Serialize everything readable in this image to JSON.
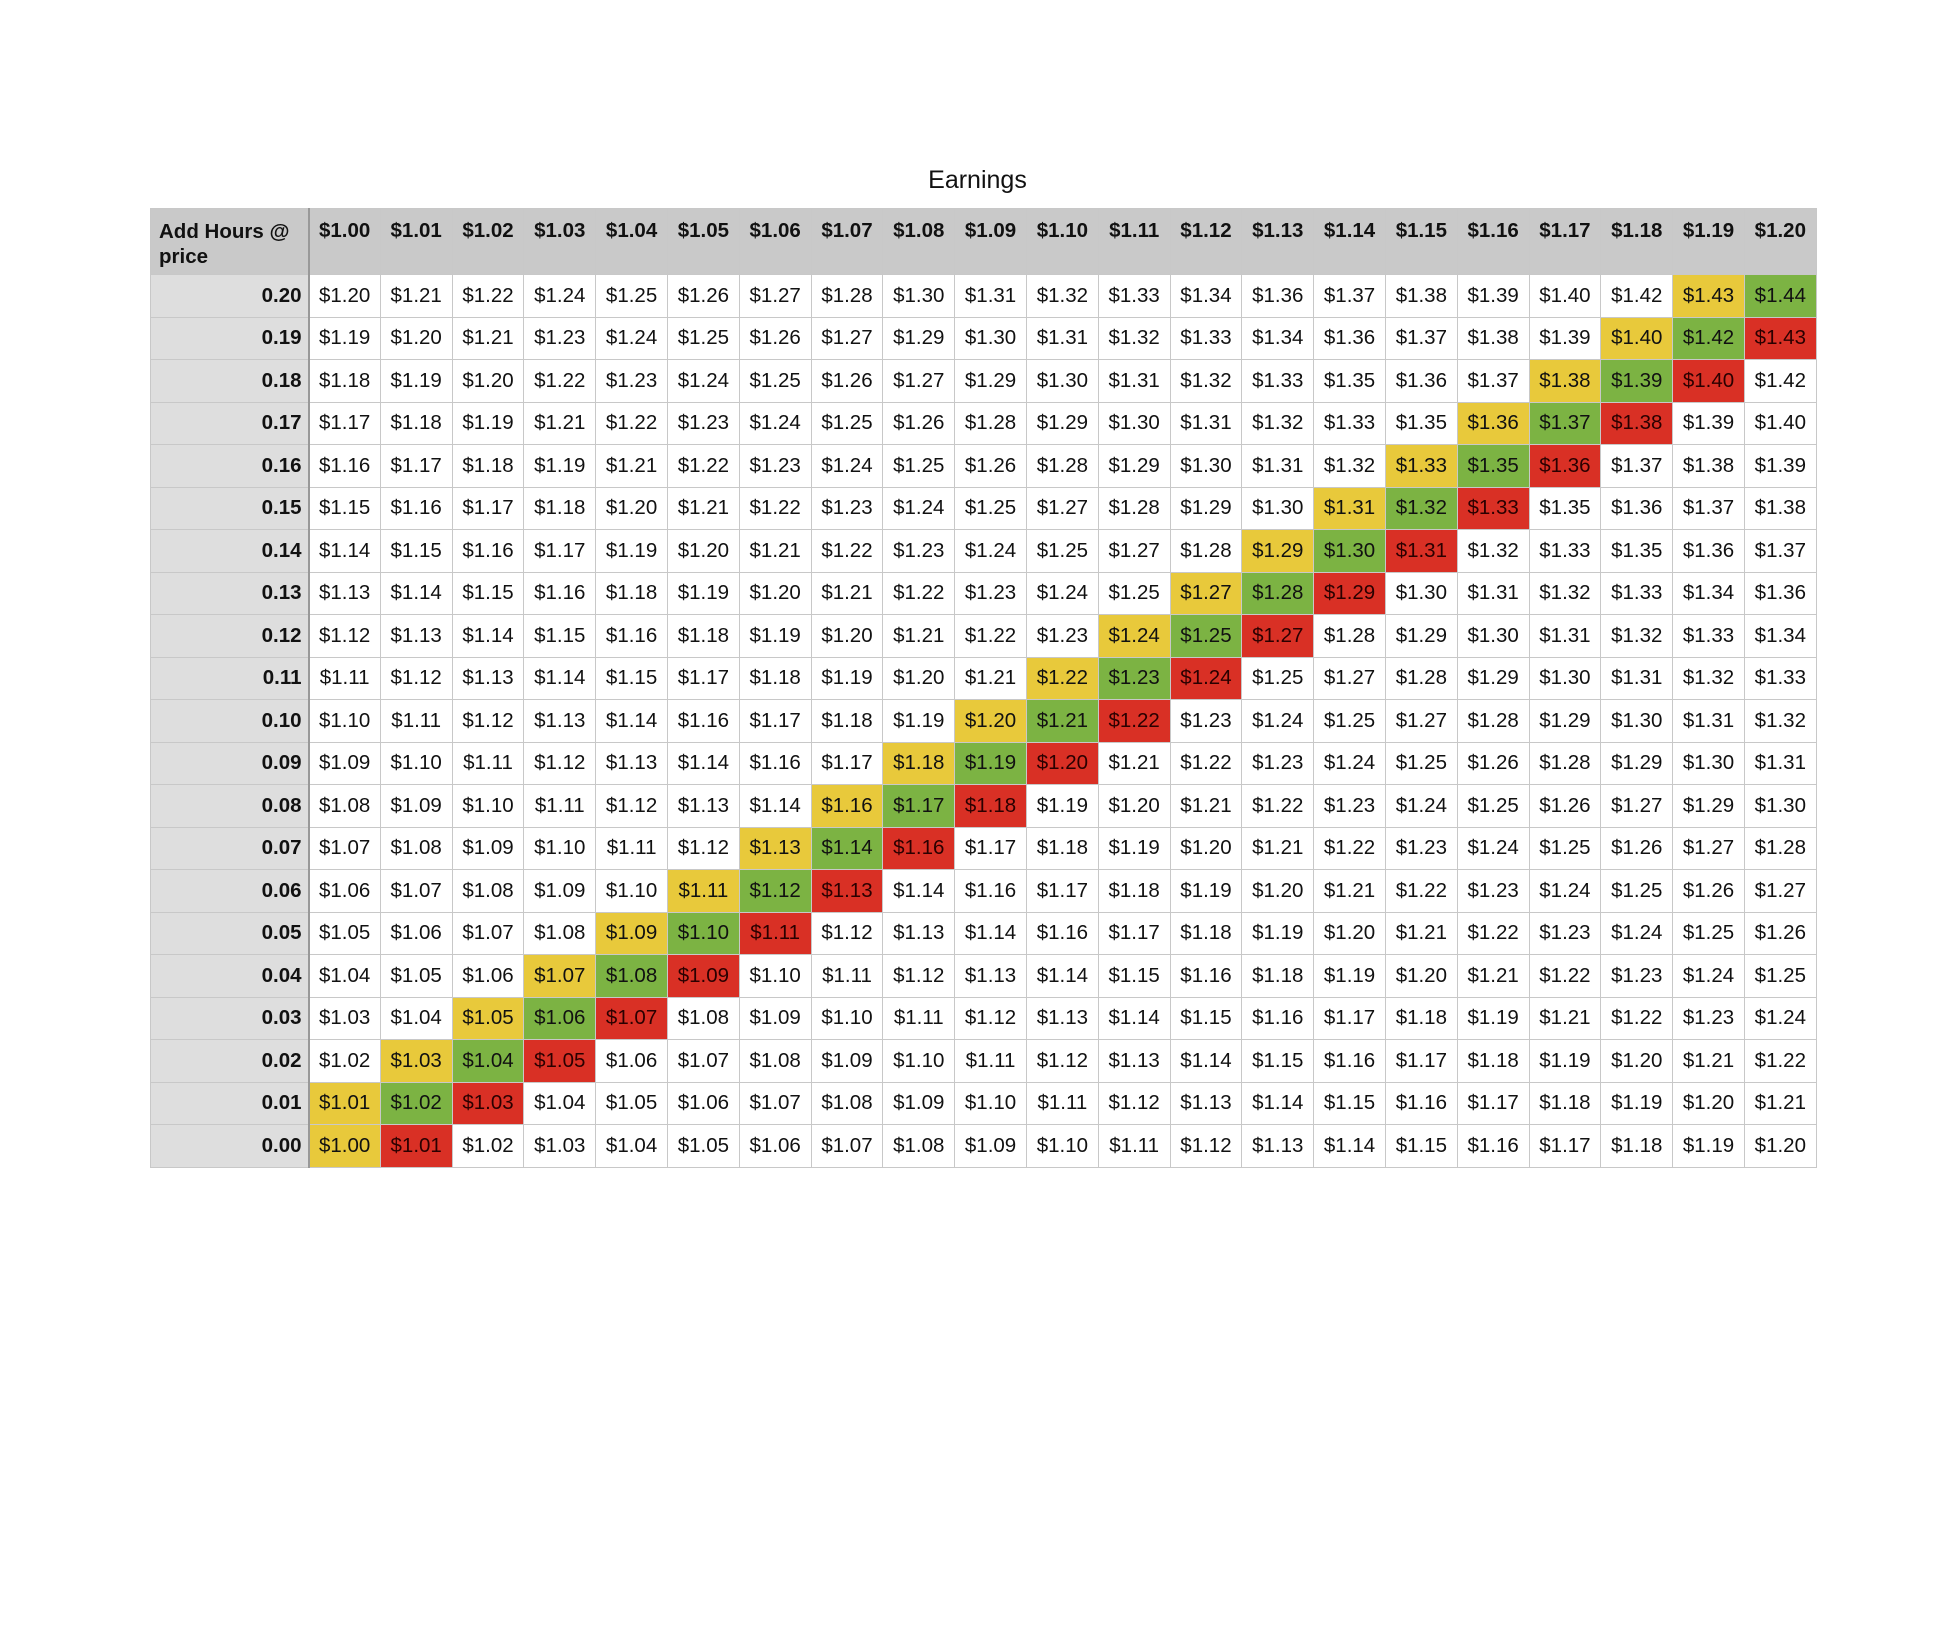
{
  "title": "Earnings",
  "corner_label": "Add Hours @ price",
  "colors": {
    "header_bg": "#c9c9c9",
    "row_header_bg": "#dedede",
    "yellow": "#e8c93b",
    "green": "#7cb343",
    "red": "#d93025"
  },
  "columns": [
    "$1.00",
    "$1.01",
    "$1.02",
    "$1.03",
    "$1.04",
    "$1.05",
    "$1.06",
    "$1.07",
    "$1.08",
    "$1.09",
    "$1.10",
    "$1.11",
    "$1.12",
    "$1.13",
    "$1.14",
    "$1.15",
    "$1.16",
    "$1.17",
    "$1.18",
    "$1.19",
    "$1.20"
  ],
  "rows": [
    {
      "label": "0.20",
      "values": [
        "$1.20",
        "$1.21",
        "$1.22",
        "$1.24",
        "$1.25",
        "$1.26",
        "$1.27",
        "$1.28",
        "$1.30",
        "$1.31",
        "$1.32",
        "$1.33",
        "$1.34",
        "$1.36",
        "$1.37",
        "$1.38",
        "$1.39",
        "$1.40",
        "$1.42",
        "$1.43",
        "$1.44"
      ],
      "highlights": [
        "",
        "",
        "",
        "",
        "",
        "",
        "",
        "",
        "",
        "",
        "",
        "",
        "",
        "",
        "",
        "",
        "",
        "",
        "",
        "yellow",
        "green"
      ]
    },
    {
      "label": "0.19",
      "values": [
        "$1.19",
        "$1.20",
        "$1.21",
        "$1.23",
        "$1.24",
        "$1.25",
        "$1.26",
        "$1.27",
        "$1.29",
        "$1.30",
        "$1.31",
        "$1.32",
        "$1.33",
        "$1.34",
        "$1.36",
        "$1.37",
        "$1.38",
        "$1.39",
        "$1.40",
        "$1.42",
        "$1.43"
      ],
      "highlights": [
        "",
        "",
        "",
        "",
        "",
        "",
        "",
        "",
        "",
        "",
        "",
        "",
        "",
        "",
        "",
        "",
        "",
        "",
        "yellow",
        "green",
        "red"
      ]
    },
    {
      "label": "0.18",
      "values": [
        "$1.18",
        "$1.19",
        "$1.20",
        "$1.22",
        "$1.23",
        "$1.24",
        "$1.25",
        "$1.26",
        "$1.27",
        "$1.29",
        "$1.30",
        "$1.31",
        "$1.32",
        "$1.33",
        "$1.35",
        "$1.36",
        "$1.37",
        "$1.38",
        "$1.39",
        "$1.40",
        "$1.42"
      ],
      "highlights": [
        "",
        "",
        "",
        "",
        "",
        "",
        "",
        "",
        "",
        "",
        "",
        "",
        "",
        "",
        "",
        "",
        "",
        "yellow",
        "green",
        "red",
        ""
      ]
    },
    {
      "label": "0.17",
      "values": [
        "$1.17",
        "$1.18",
        "$1.19",
        "$1.21",
        "$1.22",
        "$1.23",
        "$1.24",
        "$1.25",
        "$1.26",
        "$1.28",
        "$1.29",
        "$1.30",
        "$1.31",
        "$1.32",
        "$1.33",
        "$1.35",
        "$1.36",
        "$1.37",
        "$1.38",
        "$1.39",
        "$1.40"
      ],
      "highlights": [
        "",
        "",
        "",
        "",
        "",
        "",
        "",
        "",
        "",
        "",
        "",
        "",
        "",
        "",
        "",
        "",
        "yellow",
        "green",
        "red",
        "",
        ""
      ]
    },
    {
      "label": "0.16",
      "values": [
        "$1.16",
        "$1.17",
        "$1.18",
        "$1.19",
        "$1.21",
        "$1.22",
        "$1.23",
        "$1.24",
        "$1.25",
        "$1.26",
        "$1.28",
        "$1.29",
        "$1.30",
        "$1.31",
        "$1.32",
        "$1.33",
        "$1.35",
        "$1.36",
        "$1.37",
        "$1.38",
        "$1.39"
      ],
      "highlights": [
        "",
        "",
        "",
        "",
        "",
        "",
        "",
        "",
        "",
        "",
        "",
        "",
        "",
        "",
        "",
        "yellow",
        "green",
        "red",
        "",
        "",
        ""
      ]
    },
    {
      "label": "0.15",
      "values": [
        "$1.15",
        "$1.16",
        "$1.17",
        "$1.18",
        "$1.20",
        "$1.21",
        "$1.22",
        "$1.23",
        "$1.24",
        "$1.25",
        "$1.27",
        "$1.28",
        "$1.29",
        "$1.30",
        "$1.31",
        "$1.32",
        "$1.33",
        "$1.35",
        "$1.36",
        "$1.37",
        "$1.38"
      ],
      "highlights": [
        "",
        "",
        "",
        "",
        "",
        "",
        "",
        "",
        "",
        "",
        "",
        "",
        "",
        "",
        "yellow",
        "green",
        "red",
        "",
        "",
        "",
        ""
      ]
    },
    {
      "label": "0.14",
      "values": [
        "$1.14",
        "$1.15",
        "$1.16",
        "$1.17",
        "$1.19",
        "$1.20",
        "$1.21",
        "$1.22",
        "$1.23",
        "$1.24",
        "$1.25",
        "$1.27",
        "$1.28",
        "$1.29",
        "$1.30",
        "$1.31",
        "$1.32",
        "$1.33",
        "$1.35",
        "$1.36",
        "$1.37"
      ],
      "highlights": [
        "",
        "",
        "",
        "",
        "",
        "",
        "",
        "",
        "",
        "",
        "",
        "",
        "",
        "yellow",
        "green",
        "red",
        "",
        "",
        "",
        "",
        ""
      ]
    },
    {
      "label": "0.13",
      "values": [
        "$1.13",
        "$1.14",
        "$1.15",
        "$1.16",
        "$1.18",
        "$1.19",
        "$1.20",
        "$1.21",
        "$1.22",
        "$1.23",
        "$1.24",
        "$1.25",
        "$1.27",
        "$1.28",
        "$1.29",
        "$1.30",
        "$1.31",
        "$1.32",
        "$1.33",
        "$1.34",
        "$1.36"
      ],
      "highlights": [
        "",
        "",
        "",
        "",
        "",
        "",
        "",
        "",
        "",
        "",
        "",
        "",
        "yellow",
        "green",
        "red",
        "",
        "",
        "",
        "",
        "",
        ""
      ]
    },
    {
      "label": "0.12",
      "values": [
        "$1.12",
        "$1.13",
        "$1.14",
        "$1.15",
        "$1.16",
        "$1.18",
        "$1.19",
        "$1.20",
        "$1.21",
        "$1.22",
        "$1.23",
        "$1.24",
        "$1.25",
        "$1.27",
        "$1.28",
        "$1.29",
        "$1.30",
        "$1.31",
        "$1.32",
        "$1.33",
        "$1.34"
      ],
      "highlights": [
        "",
        "",
        "",
        "",
        "",
        "",
        "",
        "",
        "",
        "",
        "",
        "yellow",
        "green",
        "red",
        "",
        "",
        "",
        "",
        "",
        "",
        ""
      ]
    },
    {
      "label": "0.11",
      "values": [
        "$1.11",
        "$1.12",
        "$1.13",
        "$1.14",
        "$1.15",
        "$1.17",
        "$1.18",
        "$1.19",
        "$1.20",
        "$1.21",
        "$1.22",
        "$1.23",
        "$1.24",
        "$1.25",
        "$1.27",
        "$1.28",
        "$1.29",
        "$1.30",
        "$1.31",
        "$1.32",
        "$1.33"
      ],
      "highlights": [
        "",
        "",
        "",
        "",
        "",
        "",
        "",
        "",
        "",
        "",
        "yellow",
        "green",
        "red",
        "",
        "",
        "",
        "",
        "",
        "",
        "",
        ""
      ]
    },
    {
      "label": "0.10",
      "values": [
        "$1.10",
        "$1.11",
        "$1.12",
        "$1.13",
        "$1.14",
        "$1.16",
        "$1.17",
        "$1.18",
        "$1.19",
        "$1.20",
        "$1.21",
        "$1.22",
        "$1.23",
        "$1.24",
        "$1.25",
        "$1.27",
        "$1.28",
        "$1.29",
        "$1.30",
        "$1.31",
        "$1.32"
      ],
      "highlights": [
        "",
        "",
        "",
        "",
        "",
        "",
        "",
        "",
        "",
        "yellow",
        "green",
        "red",
        "",
        "",
        "",
        "",
        "",
        "",
        "",
        "",
        ""
      ]
    },
    {
      "label": "0.09",
      "values": [
        "$1.09",
        "$1.10",
        "$1.11",
        "$1.12",
        "$1.13",
        "$1.14",
        "$1.16",
        "$1.17",
        "$1.18",
        "$1.19",
        "$1.20",
        "$1.21",
        "$1.22",
        "$1.23",
        "$1.24",
        "$1.25",
        "$1.26",
        "$1.28",
        "$1.29",
        "$1.30",
        "$1.31"
      ],
      "highlights": [
        "",
        "",
        "",
        "",
        "",
        "",
        "",
        "",
        "yellow",
        "green",
        "red",
        "",
        "",
        "",
        "",
        "",
        "",
        "",
        "",
        "",
        ""
      ]
    },
    {
      "label": "0.08",
      "values": [
        "$1.08",
        "$1.09",
        "$1.10",
        "$1.11",
        "$1.12",
        "$1.13",
        "$1.14",
        "$1.16",
        "$1.17",
        "$1.18",
        "$1.19",
        "$1.20",
        "$1.21",
        "$1.22",
        "$1.23",
        "$1.24",
        "$1.25",
        "$1.26",
        "$1.27",
        "$1.29",
        "$1.30"
      ],
      "highlights": [
        "",
        "",
        "",
        "",
        "",
        "",
        "",
        "yellow",
        "green",
        "red",
        "",
        "",
        "",
        "",
        "",
        "",
        "",
        "",
        "",
        "",
        ""
      ]
    },
    {
      "label": "0.07",
      "values": [
        "$1.07",
        "$1.08",
        "$1.09",
        "$1.10",
        "$1.11",
        "$1.12",
        "$1.13",
        "$1.14",
        "$1.16",
        "$1.17",
        "$1.18",
        "$1.19",
        "$1.20",
        "$1.21",
        "$1.22",
        "$1.23",
        "$1.24",
        "$1.25",
        "$1.26",
        "$1.27",
        "$1.28"
      ],
      "highlights": [
        "",
        "",
        "",
        "",
        "",
        "",
        "yellow",
        "green",
        "red",
        "",
        "",
        "",
        "",
        "",
        "",
        "",
        "",
        "",
        "",
        "",
        ""
      ]
    },
    {
      "label": "0.06",
      "values": [
        "$1.06",
        "$1.07",
        "$1.08",
        "$1.09",
        "$1.10",
        "$1.11",
        "$1.12",
        "$1.13",
        "$1.14",
        "$1.16",
        "$1.17",
        "$1.18",
        "$1.19",
        "$1.20",
        "$1.21",
        "$1.22",
        "$1.23",
        "$1.24",
        "$1.25",
        "$1.26",
        "$1.27"
      ],
      "highlights": [
        "",
        "",
        "",
        "",
        "",
        "yellow",
        "green",
        "red",
        "",
        "",
        "",
        "",
        "",
        "",
        "",
        "",
        "",
        "",
        "",
        "",
        ""
      ]
    },
    {
      "label": "0.05",
      "values": [
        "$1.05",
        "$1.06",
        "$1.07",
        "$1.08",
        "$1.09",
        "$1.10",
        "$1.11",
        "$1.12",
        "$1.13",
        "$1.14",
        "$1.16",
        "$1.17",
        "$1.18",
        "$1.19",
        "$1.20",
        "$1.21",
        "$1.22",
        "$1.23",
        "$1.24",
        "$1.25",
        "$1.26"
      ],
      "highlights": [
        "",
        "",
        "",
        "",
        "yellow",
        "green",
        "red",
        "",
        "",
        "",
        "",
        "",
        "",
        "",
        "",
        "",
        "",
        "",
        "",
        "",
        ""
      ]
    },
    {
      "label": "0.04",
      "values": [
        "$1.04",
        "$1.05",
        "$1.06",
        "$1.07",
        "$1.08",
        "$1.09",
        "$1.10",
        "$1.11",
        "$1.12",
        "$1.13",
        "$1.14",
        "$1.15",
        "$1.16",
        "$1.18",
        "$1.19",
        "$1.20",
        "$1.21",
        "$1.22",
        "$1.23",
        "$1.24",
        "$1.25"
      ],
      "highlights": [
        "",
        "",
        "",
        "yellow",
        "green",
        "red",
        "",
        "",
        "",
        "",
        "",
        "",
        "",
        "",
        "",
        "",
        "",
        "",
        "",
        "",
        ""
      ]
    },
    {
      "label": "0.03",
      "values": [
        "$1.03",
        "$1.04",
        "$1.05",
        "$1.06",
        "$1.07",
        "$1.08",
        "$1.09",
        "$1.10",
        "$1.11",
        "$1.12",
        "$1.13",
        "$1.14",
        "$1.15",
        "$1.16",
        "$1.17",
        "$1.18",
        "$1.19",
        "$1.21",
        "$1.22",
        "$1.23",
        "$1.24"
      ],
      "highlights": [
        "",
        "",
        "yellow",
        "green",
        "red",
        "",
        "",
        "",
        "",
        "",
        "",
        "",
        "",
        "",
        "",
        "",
        "",
        "",
        "",
        "",
        ""
      ]
    },
    {
      "label": "0.02",
      "values": [
        "$1.02",
        "$1.03",
        "$1.04",
        "$1.05",
        "$1.06",
        "$1.07",
        "$1.08",
        "$1.09",
        "$1.10",
        "$1.11",
        "$1.12",
        "$1.13",
        "$1.14",
        "$1.15",
        "$1.16",
        "$1.17",
        "$1.18",
        "$1.19",
        "$1.20",
        "$1.21",
        "$1.22"
      ],
      "highlights": [
        "",
        "yellow",
        "green",
        "red",
        "",
        "",
        "",
        "",
        "",
        "",
        "",
        "",
        "",
        "",
        "",
        "",
        "",
        "",
        "",
        "",
        ""
      ]
    },
    {
      "label": "0.01",
      "values": [
        "$1.01",
        "$1.02",
        "$1.03",
        "$1.04",
        "$1.05",
        "$1.06",
        "$1.07",
        "$1.08",
        "$1.09",
        "$1.10",
        "$1.11",
        "$1.12",
        "$1.13",
        "$1.14",
        "$1.15",
        "$1.16",
        "$1.17",
        "$1.18",
        "$1.19",
        "$1.20",
        "$1.21"
      ],
      "highlights": [
        "yellow",
        "green",
        "red",
        "",
        "",
        "",
        "",
        "",
        "",
        "",
        "",
        "",
        "",
        "",
        "",
        "",
        "",
        "",
        "",
        "",
        ""
      ]
    },
    {
      "label": "0.00",
      "values": [
        "$1.00",
        "$1.01",
        "$1.02",
        "$1.03",
        "$1.04",
        "$1.05",
        "$1.06",
        "$1.07",
        "$1.08",
        "$1.09",
        "$1.10",
        "$1.11",
        "$1.12",
        "$1.13",
        "$1.14",
        "$1.15",
        "$1.16",
        "$1.17",
        "$1.18",
        "$1.19",
        "$1.20"
      ],
      "highlights": [
        "yellow",
        "red",
        "",
        "",
        "",
        "",
        "",
        "",
        "",
        "",
        "",
        "",
        "",
        "",
        "",
        "",
        "",
        "",
        "",
        "",
        ""
      ]
    }
  ]
}
